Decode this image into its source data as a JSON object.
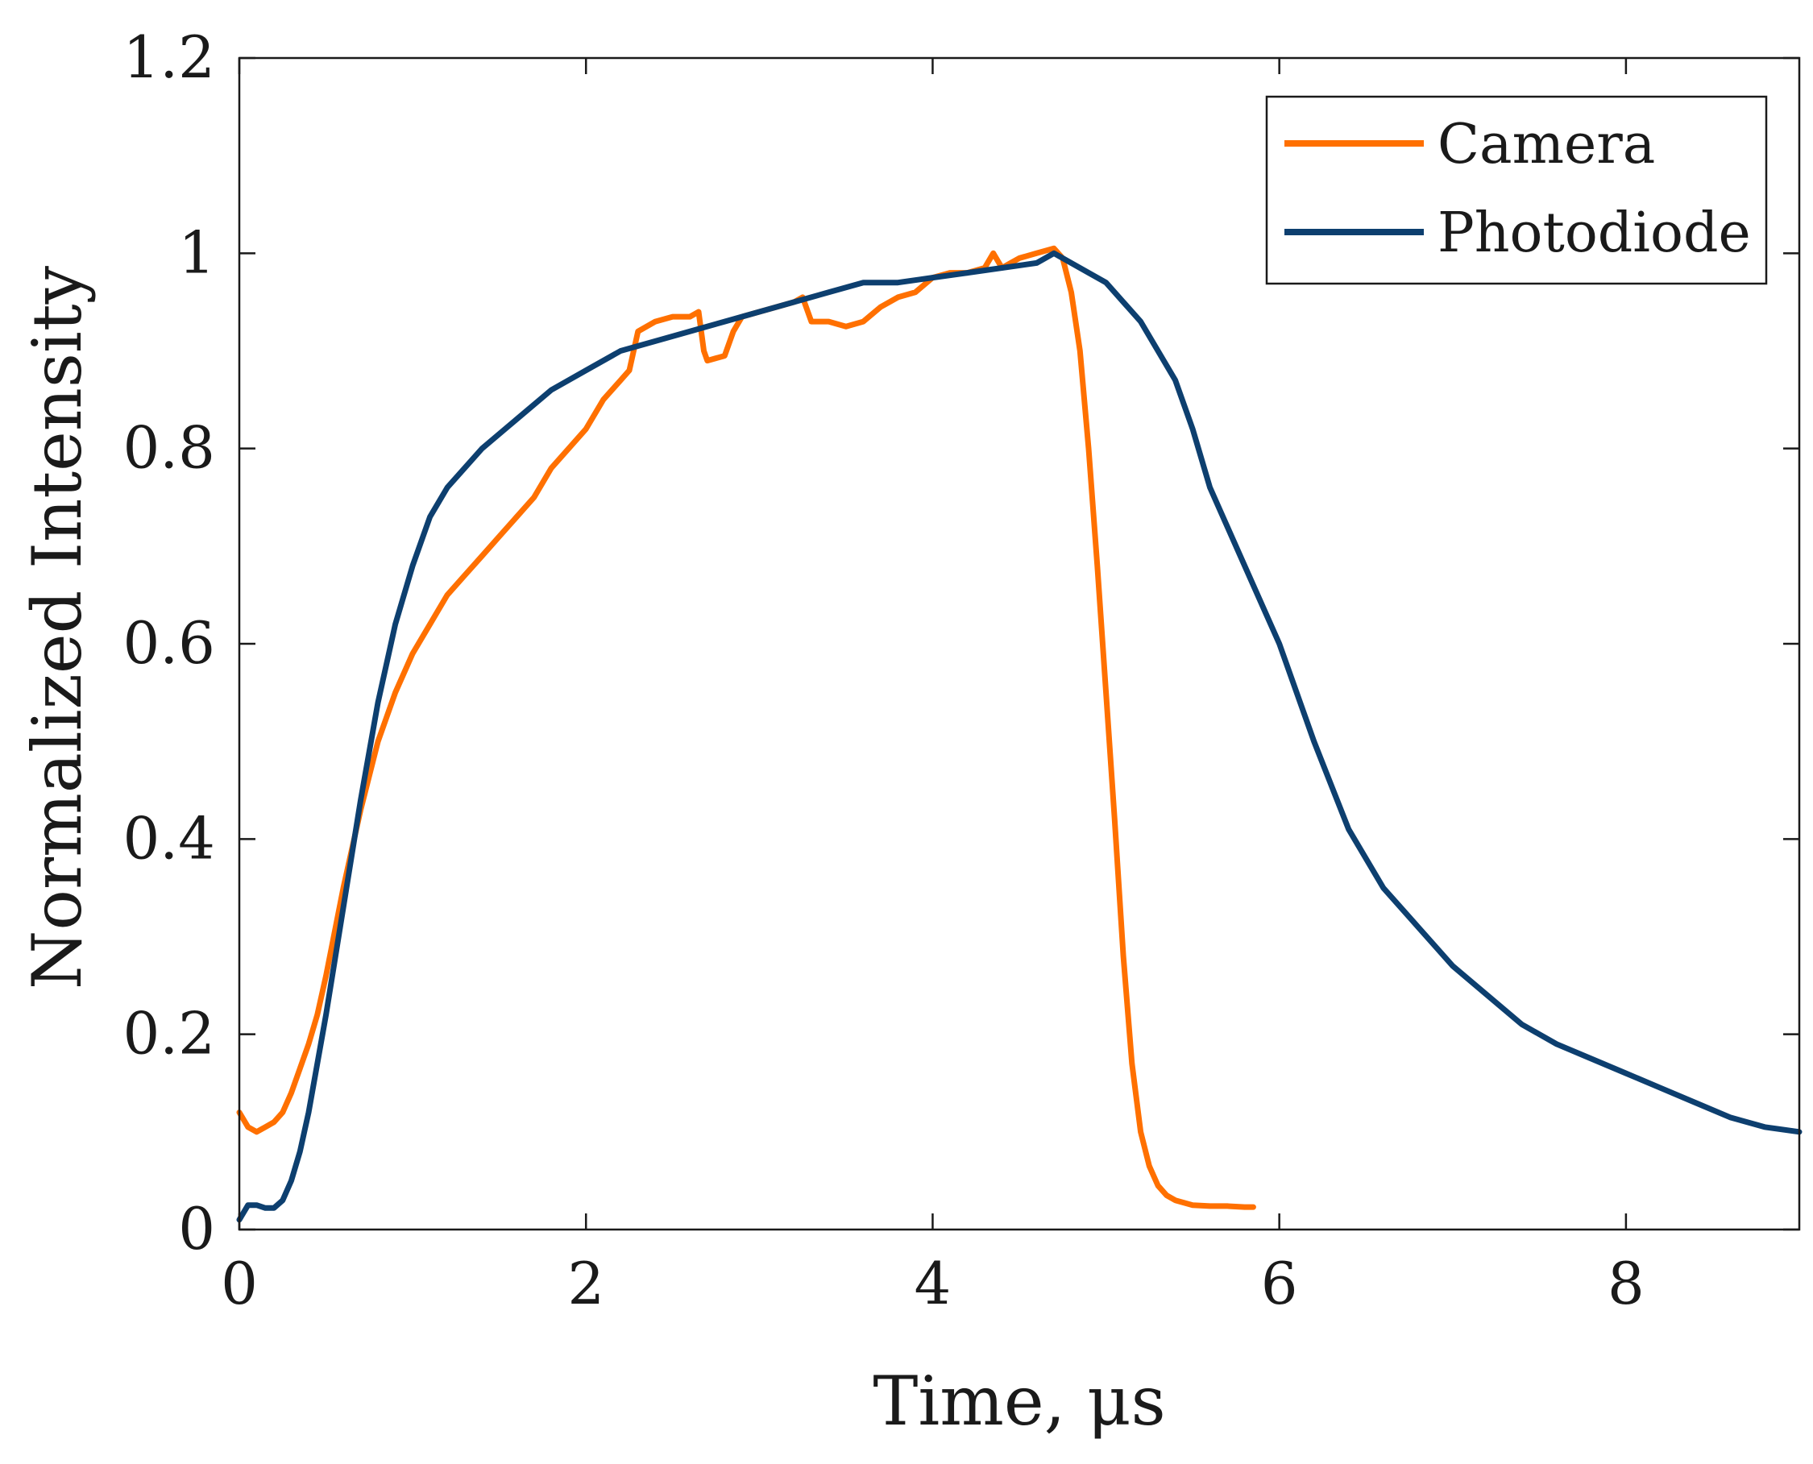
{
  "chart_data": {
    "type": "line",
    "title": "",
    "xlabel": "Time, μs",
    "ylabel": "Normalized Intensity",
    "xlim": [
      0,
      9
    ],
    "ylim": [
      0,
      1.2
    ],
    "xticks": [
      0,
      2,
      4,
      6,
      8
    ],
    "xtick_labels": [
      "0",
      "2",
      "4",
      "6",
      "8"
    ],
    "yticks": [
      0,
      0.2,
      0.4,
      0.6,
      0.8,
      1,
      1.2
    ],
    "ytick_labels": [
      "0",
      "0.2",
      "0.4",
      "0.6",
      "0.8",
      "1",
      "1.2"
    ],
    "grid": false,
    "legend_position": "top-right",
    "series": [
      {
        "name": "Camera",
        "color": "#ff7000",
        "x": [
          0,
          0.05,
          0.1,
          0.15,
          0.2,
          0.25,
          0.3,
          0.35,
          0.4,
          0.45,
          0.5,
          0.6,
          0.7,
          0.8,
          0.9,
          1.0,
          1.1,
          1.2,
          1.3,
          1.4,
          1.5,
          1.6,
          1.7,
          1.8,
          1.9,
          2.0,
          2.1,
          2.2,
          2.25,
          2.3,
          2.4,
          2.5,
          2.6,
          2.65,
          2.68,
          2.7,
          2.8,
          2.85,
          2.9,
          3.0,
          3.1,
          3.2,
          3.25,
          3.3,
          3.4,
          3.5,
          3.6,
          3.7,
          3.8,
          3.9,
          4.0,
          4.1,
          4.2,
          4.3,
          4.35,
          4.4,
          4.45,
          4.5,
          4.6,
          4.7,
          4.75,
          4.8,
          4.85,
          4.9,
          4.95,
          5.0,
          5.05,
          5.1,
          5.15,
          5.2,
          5.25,
          5.3,
          5.35,
          5.4,
          5.5,
          5.6,
          5.7,
          5.8,
          5.85
        ],
        "y": [
          0.12,
          0.105,
          0.1,
          0.105,
          0.11,
          0.12,
          0.14,
          0.165,
          0.19,
          0.22,
          0.26,
          0.35,
          0.43,
          0.5,
          0.55,
          0.59,
          0.62,
          0.65,
          0.67,
          0.69,
          0.71,
          0.73,
          0.75,
          0.78,
          0.8,
          0.82,
          0.85,
          0.87,
          0.88,
          0.92,
          0.93,
          0.935,
          0.935,
          0.94,
          0.9,
          0.89,
          0.895,
          0.92,
          0.935,
          0.94,
          0.945,
          0.95,
          0.955,
          0.93,
          0.93,
          0.925,
          0.93,
          0.945,
          0.955,
          0.96,
          0.975,
          0.98,
          0.98,
          0.985,
          1.0,
          0.985,
          0.99,
          0.995,
          1.0,
          1.005,
          0.995,
          0.96,
          0.9,
          0.8,
          0.68,
          0.55,
          0.42,
          0.28,
          0.17,
          0.1,
          0.065,
          0.045,
          0.035,
          0.03,
          0.025,
          0.024,
          0.024,
          0.023,
          0.023
        ]
      },
      {
        "name": "Photodiode",
        "color": "#0d3f6f",
        "x": [
          0,
          0.05,
          0.1,
          0.15,
          0.2,
          0.25,
          0.3,
          0.35,
          0.4,
          0.5,
          0.6,
          0.7,
          0.8,
          0.9,
          1.0,
          1.1,
          1.2,
          1.3,
          1.4,
          1.6,
          1.8,
          2.0,
          2.2,
          2.4,
          2.6,
          2.8,
          3.0,
          3.2,
          3.4,
          3.6,
          3.8,
          4.0,
          4.2,
          4.4,
          4.6,
          4.7,
          4.8,
          4.9,
          5.0,
          5.1,
          5.2,
          5.3,
          5.4,
          5.5,
          5.6,
          5.7,
          5.8,
          6.0,
          6.2,
          6.4,
          6.6,
          6.8,
          7.0,
          7.2,
          7.4,
          7.6,
          7.8,
          8.0,
          8.2,
          8.4,
          8.6,
          8.8,
          9.0
        ],
        "y": [
          0.01,
          0.025,
          0.025,
          0.022,
          0.022,
          0.03,
          0.05,
          0.08,
          0.12,
          0.22,
          0.33,
          0.44,
          0.54,
          0.62,
          0.68,
          0.73,
          0.76,
          0.78,
          0.8,
          0.83,
          0.86,
          0.88,
          0.9,
          0.91,
          0.92,
          0.93,
          0.94,
          0.95,
          0.96,
          0.97,
          0.97,
          0.975,
          0.98,
          0.985,
          0.99,
          1.0,
          0.99,
          0.98,
          0.97,
          0.95,
          0.93,
          0.9,
          0.87,
          0.82,
          0.76,
          0.72,
          0.68,
          0.6,
          0.5,
          0.41,
          0.35,
          0.31,
          0.27,
          0.24,
          0.21,
          0.19,
          0.175,
          0.16,
          0.145,
          0.13,
          0.115,
          0.105,
          0.1
        ]
      }
    ]
  }
}
